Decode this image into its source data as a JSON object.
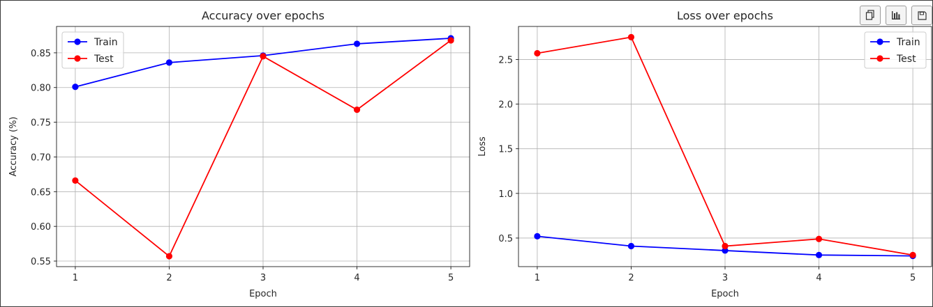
{
  "toolbar": {
    "icons": [
      "copy-icon",
      "bar-chart-icon",
      "save-icon"
    ]
  },
  "chart_data": [
    {
      "type": "line",
      "title": "Accuracy over epochs",
      "xlabel": "Epoch",
      "ylabel": "Accuracy (%)",
      "x": [
        1,
        2,
        3,
        4,
        5
      ],
      "xlim": [
        0.8,
        5.2
      ],
      "ylim": [
        0.542,
        0.888
      ],
      "xticks": [
        1,
        2,
        3,
        4,
        5
      ],
      "yticks": [
        0.55,
        0.6,
        0.65,
        0.7,
        0.75,
        0.8,
        0.85
      ],
      "ytick_format": 2,
      "grid": true,
      "legend": "upper-left",
      "series": [
        {
          "name": "Train",
          "color": "#0000ff",
          "values": [
            0.801,
            0.836,
            0.846,
            0.863,
            0.871
          ]
        },
        {
          "name": "Test",
          "color": "#ff0000",
          "values": [
            0.666,
            0.557,
            0.845,
            0.768,
            0.868
          ]
        }
      ]
    },
    {
      "type": "line",
      "title": "Loss over epochs",
      "xlabel": "Epoch",
      "ylabel": "Loss",
      "x": [
        1,
        2,
        3,
        4,
        5
      ],
      "xlim": [
        0.8,
        5.2
      ],
      "ylim": [
        0.18,
        2.87
      ],
      "xticks": [
        1,
        2,
        3,
        4,
        5
      ],
      "yticks": [
        0.5,
        1.0,
        1.5,
        2.0,
        2.5
      ],
      "ytick_format": 1,
      "grid": true,
      "legend": "upper-right",
      "series": [
        {
          "name": "Train",
          "color": "#0000ff",
          "values": [
            0.52,
            0.41,
            0.36,
            0.31,
            0.3
          ]
        },
        {
          "name": "Test",
          "color": "#ff0000",
          "values": [
            2.57,
            2.75,
            0.41,
            0.49,
            0.31
          ]
        }
      ]
    }
  ]
}
